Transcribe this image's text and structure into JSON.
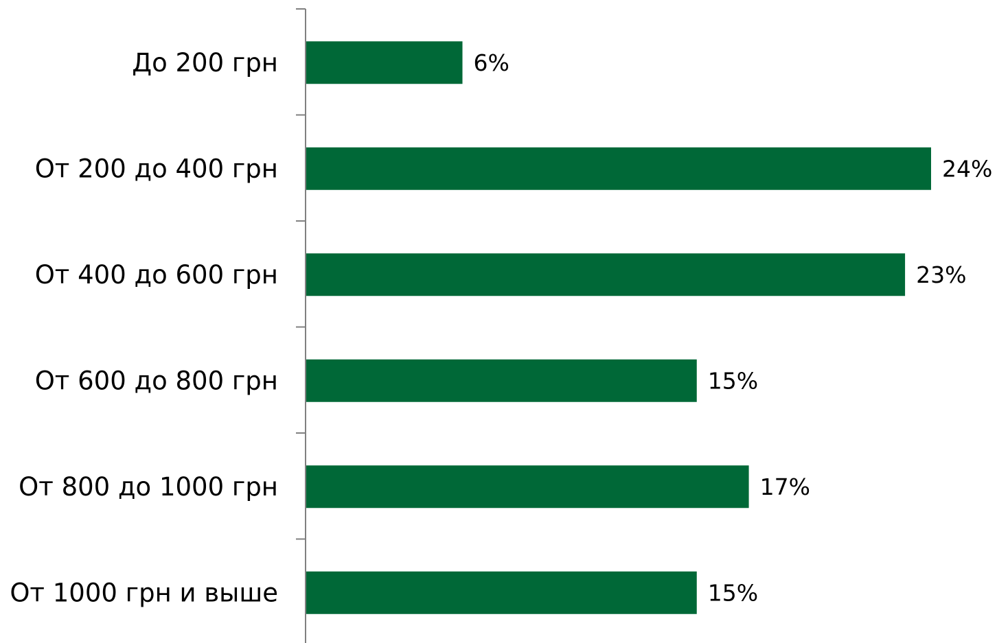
{
  "chart_data": {
    "type": "bar",
    "orientation": "horizontal",
    "title": "",
    "xlabel": "",
    "ylabel": "",
    "categories": [
      "До 200 грн",
      "От 200 до 400 грн",
      "От 400 до 600 грн",
      "От 600 до 800 грн",
      "От 800 до 1000 грн",
      "От 1000 грн и выше"
    ],
    "values": [
      6,
      24,
      23,
      15,
      17,
      15
    ],
    "value_labels": [
      "6%",
      "24%",
      "23%",
      "15%",
      "17%",
      "15%"
    ],
    "unit": "%",
    "xlim": [
      0,
      24
    ],
    "grid": false,
    "legend": "none",
    "bar_color": "#006837",
    "axis_color": "#808080"
  }
}
